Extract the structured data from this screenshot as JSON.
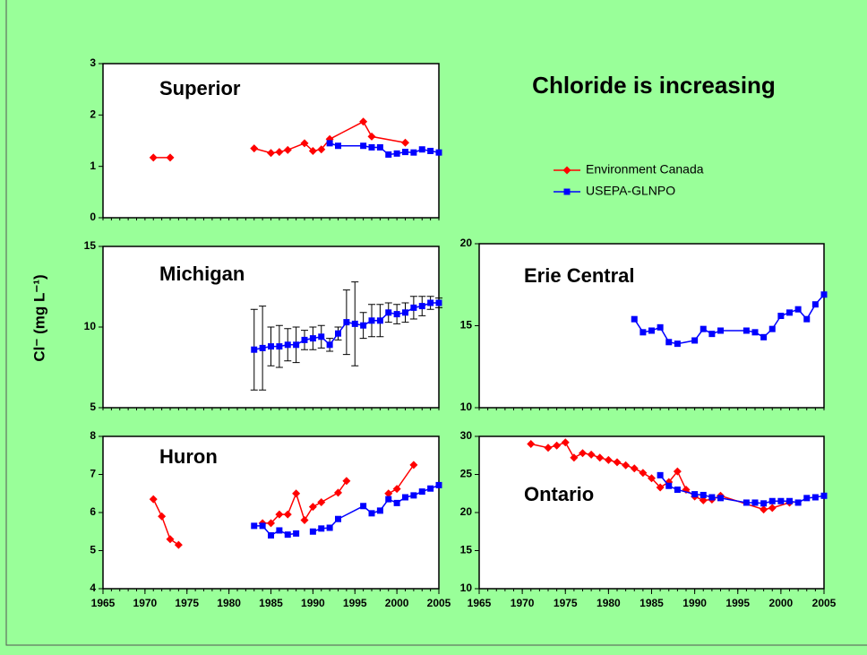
{
  "title": "Chloride is increasing",
  "ylabel": "Cl⁻ (mg L⁻¹)",
  "chart_data": [
    {
      "type": "line",
      "title": "Superior",
      "xlim": [
        1965,
        2005
      ],
      "ylim": [
        0,
        3
      ],
      "yticks": [
        0,
        1,
        2,
        3
      ],
      "series": [
        {
          "name": "Environment Canada",
          "color": "#ff0000",
          "marker": "diamond",
          "x": [
            1971,
            1973,
            1978,
            1983,
            1985,
            1986,
            1987,
            1989,
            1990,
            1991,
            1992,
            1996,
            1997,
            2001
          ],
          "values": [
            1.17,
            1.17,
            null,
            1.35,
            1.26,
            1.28,
            1.32,
            1.45,
            1.3,
            1.33,
            1.53,
            1.87,
            1.58,
            1.46
          ]
        },
        {
          "name": "USEPA-GLNPO",
          "color": "#0000ff",
          "marker": "square",
          "x": [
            1992,
            1993,
            1996,
            1997,
            1998,
            1999,
            2000,
            2001,
            2002,
            2003,
            2004,
            2005
          ],
          "values": [
            1.45,
            1.4,
            1.4,
            1.37,
            1.37,
            1.23,
            1.25,
            1.28,
            1.27,
            1.33,
            1.3,
            1.27
          ]
        }
      ]
    },
    {
      "type": "line",
      "title": "Michigan",
      "xlim": [
        1965,
        2005
      ],
      "ylim": [
        5,
        15
      ],
      "yticks": [
        5,
        10,
        15
      ],
      "series": [
        {
          "color": "#0000ff",
          "marker": "square",
          "x": [
            1983,
            1984,
            1985,
            1986,
            1987,
            1988,
            1989,
            1990,
            1991,
            1992,
            1993,
            1994,
            1995,
            1996,
            1997,
            1998,
            1999,
            2000,
            2001,
            2002,
            2003,
            2004,
            2005
          ],
          "values": [
            8.6,
            8.7,
            8.8,
            8.8,
            8.9,
            8.9,
            9.2,
            9.3,
            9.4,
            8.9,
            9.6,
            10.3,
            10.2,
            10.1,
            10.4,
            10.4,
            10.9,
            10.8,
            10.9,
            11.2,
            11.3,
            11.5,
            11.5
          ],
          "errors": [
            2.5,
            2.6,
            1.2,
            1.3,
            1.0,
            1.1,
            0.6,
            0.7,
            0.7,
            0.4,
            0.4,
            2.0,
            2.6,
            0.8,
            1.0,
            1.0,
            0.6,
            0.6,
            0.6,
            0.7,
            0.6,
            0.4,
            0.3
          ]
        }
      ]
    },
    {
      "type": "line",
      "title": "Erie Central",
      "xlim": [
        1965,
        2005
      ],
      "ylim": [
        10,
        20
      ],
      "yticks": [
        10,
        15,
        20
      ],
      "series": [
        {
          "color": "#0000ff",
          "marker": "square",
          "x": [
            1983,
            1984,
            1985,
            1986,
            1987,
            1988,
            1990,
            1991,
            1992,
            1993,
            1996,
            1997,
            1998,
            1999,
            2000,
            2001,
            2002,
            2003,
            2004,
            2005
          ],
          "values": [
            15.4,
            14.6,
            14.7,
            14.9,
            14.0,
            13.9,
            14.1,
            14.8,
            14.5,
            14.7,
            14.7,
            14.6,
            14.3,
            14.8,
            15.6,
            15.8,
            16.0,
            15.4,
            16.3,
            16.9
          ]
        }
      ]
    },
    {
      "type": "line",
      "title": "Huron",
      "xlim": [
        1965,
        2005
      ],
      "ylim": [
        4,
        8
      ],
      "yticks": [
        4,
        5,
        6,
        7,
        8
      ],
      "xticks": [
        1965,
        1970,
        1975,
        1980,
        1985,
        1990,
        1995,
        2000,
        2005
      ],
      "series": [
        {
          "color": "#ff0000",
          "marker": "diamond",
          "x": [
            1971,
            1972,
            1973,
            1974,
            1979,
            1984,
            1985,
            1986,
            1987,
            1988,
            1989,
            1990,
            1991,
            1993,
            1994,
            1997,
            1999,
            2000,
            2002
          ],
          "values": [
            6.35,
            5.9,
            5.3,
            5.15,
            null,
            5.72,
            5.72,
            5.95,
            5.95,
            6.5,
            5.8,
            6.15,
            6.27,
            6.52,
            6.83,
            null,
            6.5,
            6.62,
            7.25
          ]
        },
        {
          "color": "#0000ff",
          "marker": "square",
          "x": [
            1983,
            1984,
            1985,
            1986,
            1987,
            1988,
            1989,
            1990,
            1991,
            1992,
            1993,
            1996,
            1997,
            1998,
            1999,
            2000,
            2001,
            2002,
            2003,
            2004,
            2005
          ],
          "values": [
            5.65,
            5.65,
            5.4,
            5.53,
            5.42,
            5.45,
            null,
            5.5,
            5.58,
            5.6,
            5.83,
            6.17,
            5.98,
            6.05,
            6.35,
            6.25,
            6.4,
            6.45,
            6.55,
            6.63,
            6.72
          ]
        }
      ]
    },
    {
      "type": "line",
      "title": "Ontario",
      "xlim": [
        1965,
        2005
      ],
      "ylim": [
        10,
        30
      ],
      "yticks": [
        10,
        15,
        20,
        25,
        30
      ],
      "xticks": [
        1965,
        1970,
        1975,
        1980,
        1985,
        1990,
        1995,
        2000,
        2005
      ],
      "series": [
        {
          "color": "#ff0000",
          "marker": "diamond",
          "x": [
            1971,
            1973,
            1974,
            1975,
            1976,
            1977,
            1978,
            1979,
            1980,
            1981,
            1982,
            1983,
            1984,
            1985,
            1986,
            1987,
            1988,
            1989,
            1990,
            1991,
            1992,
            1993,
            1998,
            1999,
            2001
          ],
          "values": [
            29.0,
            28.5,
            28.8,
            29.2,
            27.2,
            27.8,
            27.6,
            27.2,
            26.9,
            26.6,
            26.2,
            25.8,
            25.2,
            24.5,
            23.3,
            24.0,
            25.4,
            23.0,
            22.1,
            21.6,
            21.7,
            22.2,
            20.4,
            20.6,
            21.3
          ]
        },
        {
          "color": "#0000ff",
          "marker": "square",
          "x": [
            1986,
            1987,
            1988,
            1990,
            1991,
            1992,
            1993,
            1996,
            1997,
            1998,
            1999,
            2000,
            2001,
            2002,
            2003,
            2004,
            2005
          ],
          "values": [
            24.9,
            23.5,
            23.0,
            22.4,
            22.3,
            22.0,
            21.9,
            21.3,
            21.3,
            21.2,
            21.5,
            21.5,
            21.5,
            21.3,
            21.9,
            22.0,
            22.2
          ]
        }
      ]
    }
  ]
}
